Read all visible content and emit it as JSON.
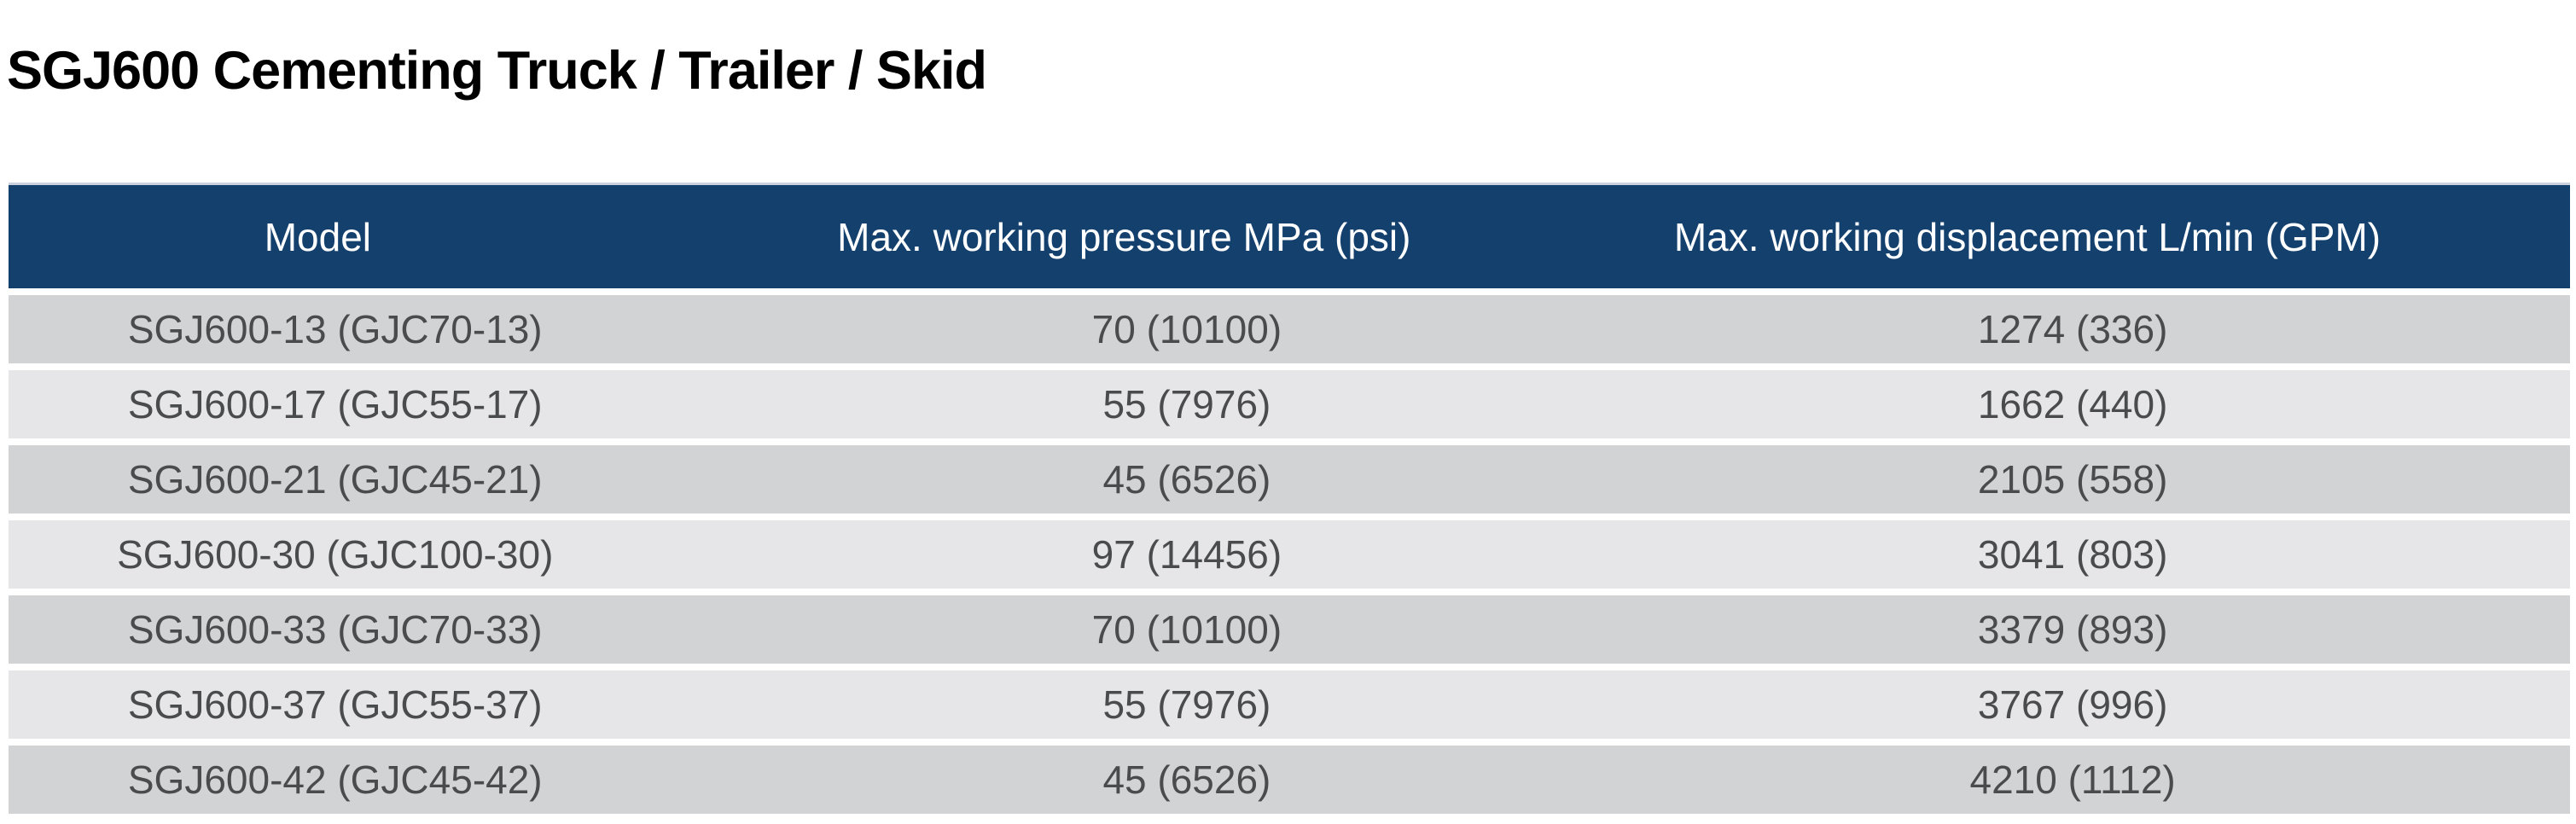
{
  "page": {
    "title": "SGJ600 Cementing Truck / Trailer / Skid"
  },
  "table": {
    "columns": [
      "Model",
      "Max. working pressure MPa (psi)",
      "Max. working displacement L/min (GPM)"
    ],
    "rows": [
      {
        "model": "SGJ600-13 (GJC70-13)",
        "pressure": "70 (10100)",
        "displacement": "1274 (336)"
      },
      {
        "model": "SGJ600-17 (GJC55-17)",
        "pressure": "55 (7976)",
        "displacement": "1662 (440)"
      },
      {
        "model": "SGJ600-21 (GJC45-21)",
        "pressure": "45 (6526)",
        "displacement": "2105 (558)"
      },
      {
        "model": "SGJ600-30 (GJC100-30)",
        "pressure": "97 (14456)",
        "displacement": "3041 (803)"
      },
      {
        "model": "SGJ600-33 (GJC70-33)",
        "pressure": "70 (10100)",
        "displacement": "3379 (893)"
      },
      {
        "model": "SGJ600-37 (GJC55-37)",
        "pressure": "55 (7976)",
        "displacement": "3767 (996)"
      },
      {
        "model": "SGJ600-42 (GJC45-42)",
        "pressure": "45 (6526)",
        "displacement": "4210 (1112)"
      }
    ],
    "colors": {
      "header_bg": "#14406e",
      "header_text": "#ffffff",
      "row_dark": "#d2d3d4",
      "row_light": "#e6e6e8",
      "cell_text": "#4a4b4d"
    }
  }
}
